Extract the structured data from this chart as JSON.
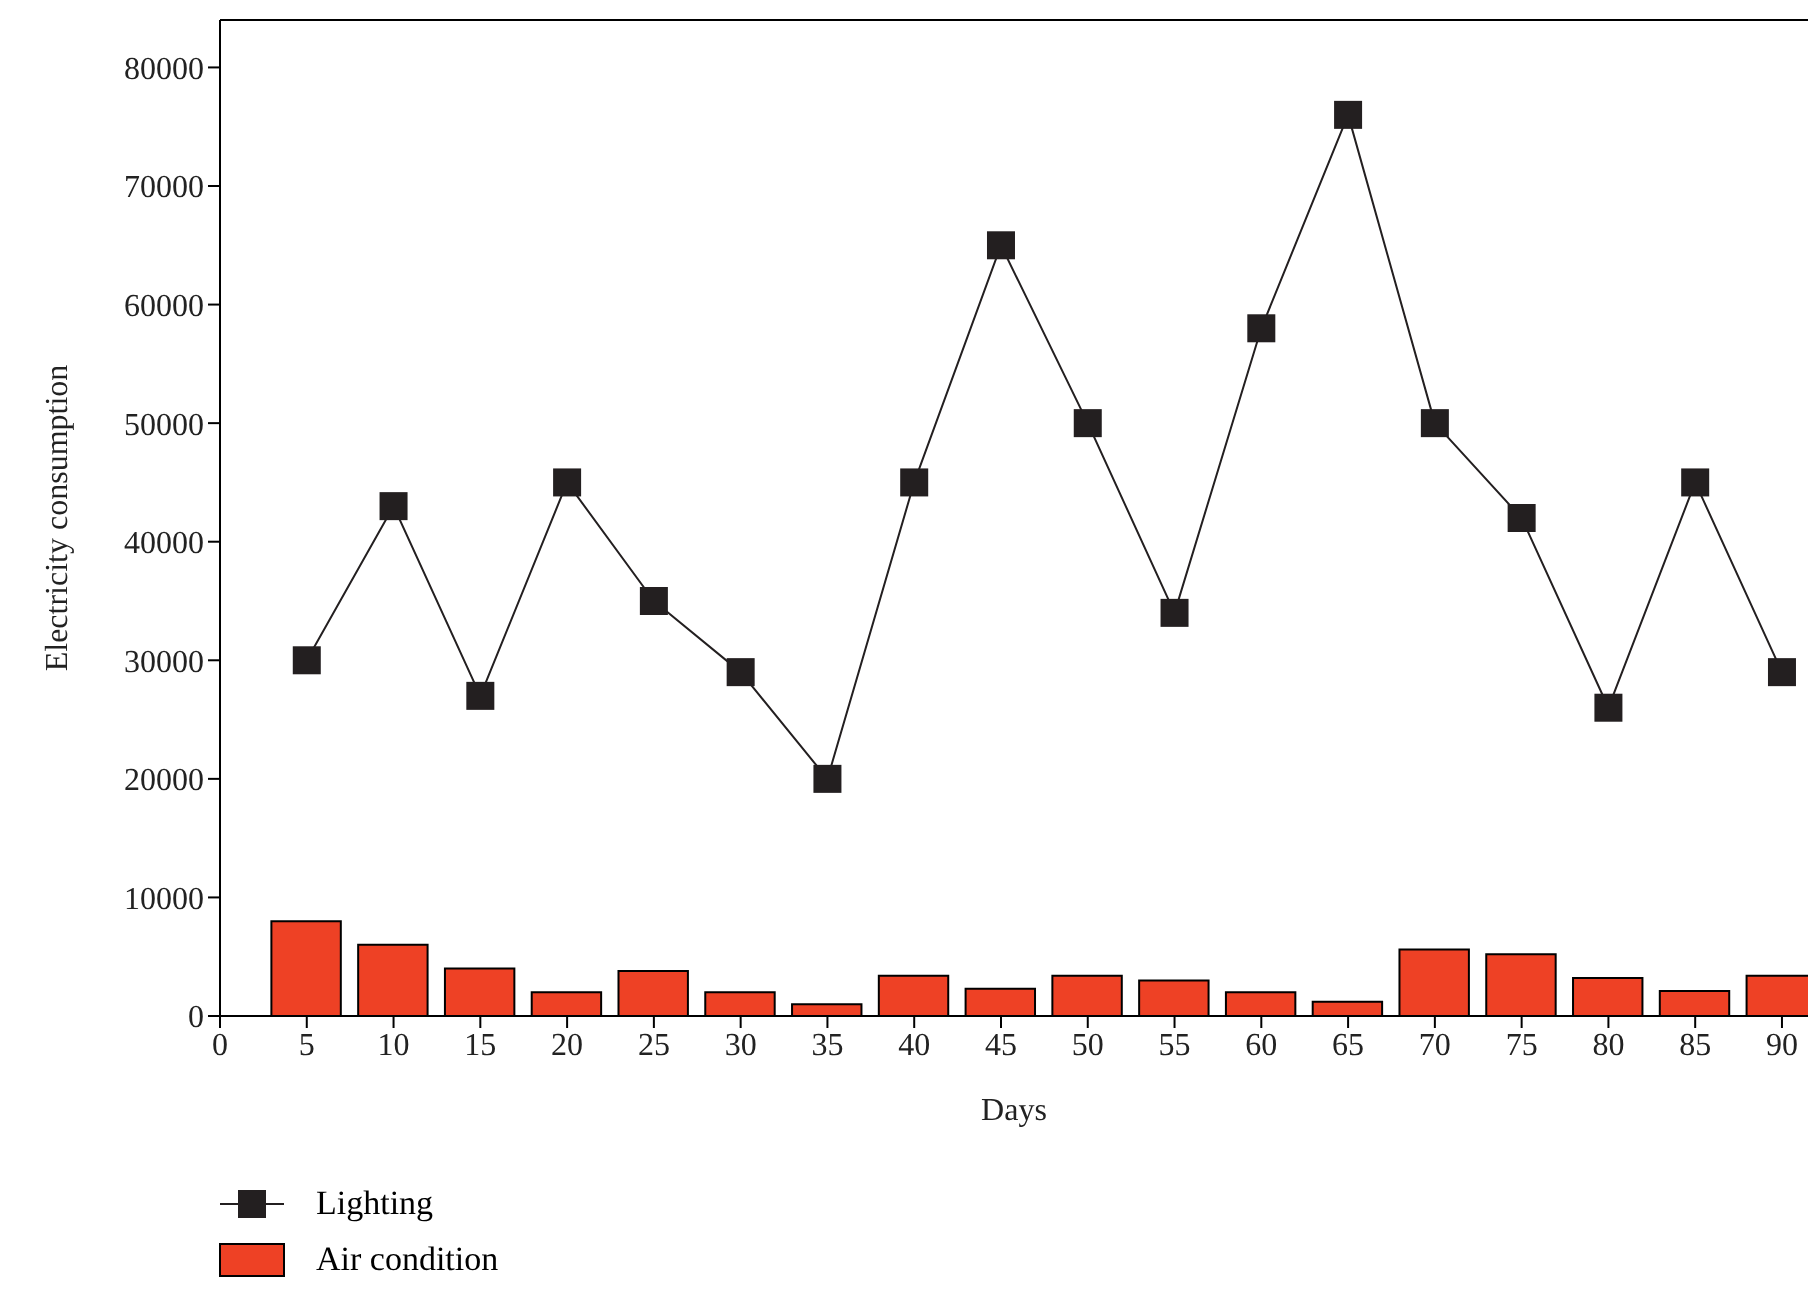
{
  "chart_data": {
    "type": "bar",
    "xlabel": "Days",
    "ylabel": "Electricity consumption",
    "x": [
      5,
      10,
      15,
      20,
      25,
      30,
      35,
      40,
      45,
      50,
      55,
      60,
      65,
      70,
      75,
      80,
      85,
      90
    ],
    "xlim": [
      0,
      91.5
    ],
    "xticks": [
      0,
      5,
      10,
      15,
      20,
      25,
      30,
      35,
      40,
      45,
      50,
      55,
      60,
      65,
      70,
      75,
      80,
      85,
      90
    ],
    "ylim": [
      0,
      84000
    ],
    "yticks": [
      0,
      10000,
      20000,
      30000,
      40000,
      50000,
      60000,
      70000,
      80000
    ],
    "series": [
      {
        "name": "Lighting",
        "type": "line",
        "color": "#231f20",
        "marker": "square",
        "values": [
          30000,
          43000,
          27000,
          45000,
          35000,
          29000,
          20000,
          45000,
          65000,
          50000,
          34000,
          58000,
          76000,
          50000,
          42000,
          26000,
          45000,
          29000
        ]
      },
      {
        "name": "Air condition",
        "color": "#ee4125",
        "values": [
          8000,
          6000,
          4000,
          2000,
          3800,
          2000,
          1000,
          3400,
          2300,
          3400,
          3000,
          2000,
          1200,
          5600,
          5200,
          3200,
          2100,
          3400
        ]
      }
    ],
    "legend": "bottom left"
  }
}
